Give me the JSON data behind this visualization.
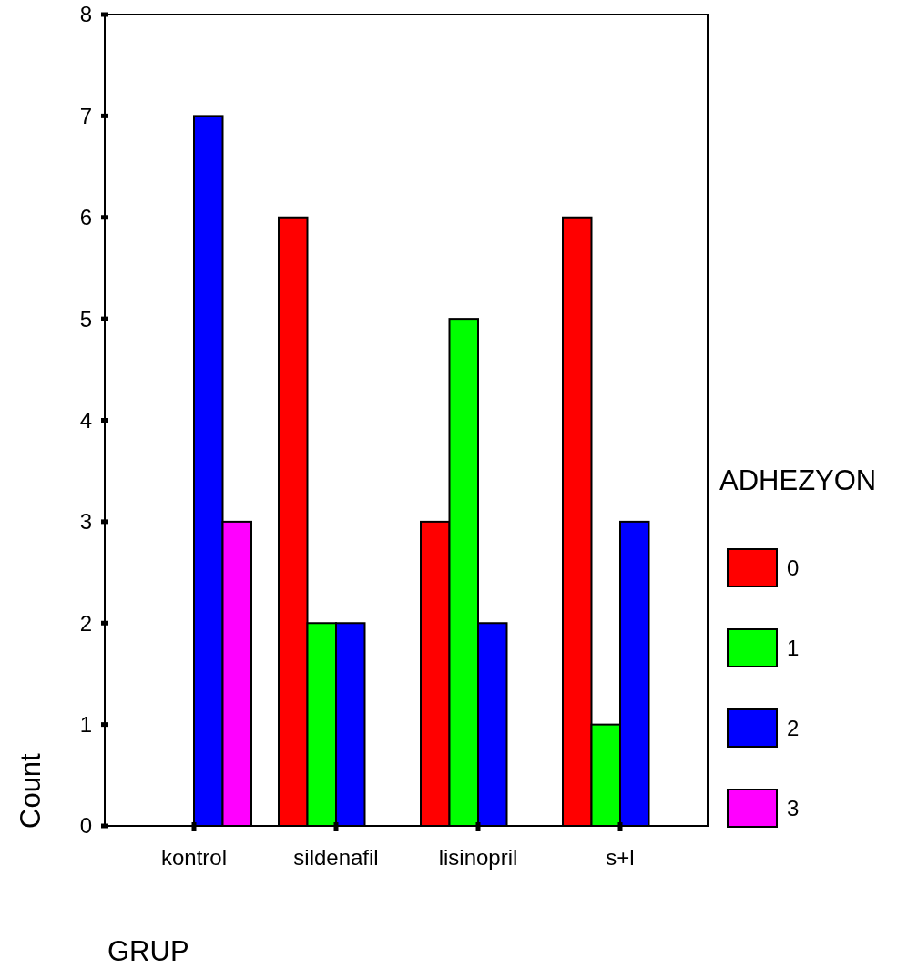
{
  "chart_data": {
    "type": "bar",
    "xlabel": "GRUP",
    "ylabel": "Count",
    "legend_title": "ADHEZYON",
    "categories": [
      "kontrol",
      "sildenafil",
      "lisinopril",
      "s+l"
    ],
    "series": [
      {
        "name": "0",
        "color": "#ff0000",
        "values": [
          0,
          6,
          3,
          6
        ]
      },
      {
        "name": "1",
        "color": "#00ff00",
        "values": [
          0,
          2,
          5,
          1
        ]
      },
      {
        "name": "2",
        "color": "#0000ff",
        "values": [
          7,
          2,
          2,
          3
        ]
      },
      {
        "name": "3",
        "color": "#ff00ff",
        "values": [
          3,
          0,
          0,
          0
        ]
      }
    ],
    "ylim": [
      0,
      8
    ],
    "yticks": [
      0,
      1,
      2,
      3,
      4,
      5,
      6,
      7,
      8
    ],
    "grid": false,
    "legend": "right"
  }
}
